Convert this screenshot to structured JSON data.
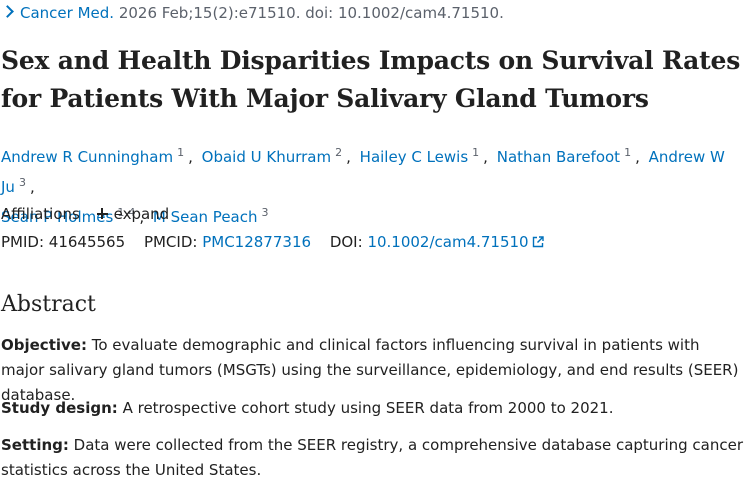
{
  "citation": {
    "journal": "Cancer Med.",
    "details": "2026 Feb;15(2):e71510. doi: 10.1002/cam4.71510."
  },
  "title": "Sex and Health Disparities Impacts on Survival Rates for Patients With Major Salivary Gland Tumors",
  "authors": [
    {
      "name": "Andrew R Cunningham",
      "affs": [
        "1"
      ]
    },
    {
      "name": "Obaid U Khurram",
      "affs": [
        "2"
      ]
    },
    {
      "name": "Hailey C Lewis",
      "affs": [
        "1"
      ]
    },
    {
      "name": "Nathan Barefoot",
      "affs": [
        "1"
      ]
    },
    {
      "name": "Andrew W Ju",
      "affs": [
        "3"
      ]
    },
    {
      "name": "Sean P Holmes",
      "affs": [
        "1",
        "4"
      ]
    },
    {
      "name": "M Sean Peach",
      "affs": [
        "3"
      ]
    }
  ],
  "affiliations": {
    "label": "Affiliations",
    "expand_label": "expand"
  },
  "identifiers": {
    "pmid_label": "PMID:",
    "pmid": "41645565",
    "pmcid_label": "PMCID:",
    "pmcid": "PMC12877316",
    "doi_label": "DOI:",
    "doi": "10.1002/cam4.71510"
  },
  "abstract": {
    "heading": "Abstract",
    "sections": [
      {
        "label": "Objective:",
        "text": "To evaluate demographic and clinical factors influencing survival in patients with major salivary gland tumors (MSGTs) using the surveillance, epidemiology, and end results (SEER) database."
      },
      {
        "label": "Study design:",
        "text": "A retrospective cohort study using SEER data from 2000 to 2021."
      },
      {
        "label": "Setting:",
        "text": "Data were collected from the SEER registry, a comprehensive database capturing cancer statistics across the United States."
      }
    ]
  },
  "colors": {
    "link": "#0071bc",
    "text": "#212121",
    "muted": "#5b616b"
  },
  "icons": {
    "citation_toggle": "chevron-right-icon",
    "expand": "plus-icon",
    "external": "external-link-icon"
  }
}
